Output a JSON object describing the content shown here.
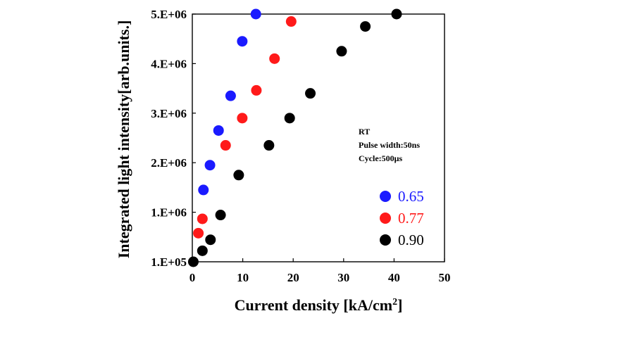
{
  "chart_data": {
    "type": "scatter",
    "title": "",
    "xlabel": "Current density [kA/cm",
    "xlabel_sup": "2",
    "xlabel_end": "]",
    "ylabel": "Integrated light intensity[arb.units.]",
    "xlim": [
      0,
      50
    ],
    "x_ticks": [
      0,
      10,
      20,
      30,
      40,
      50
    ],
    "x_tick_labels": [
      "0",
      "10",
      "20",
      "30",
      "40",
      "50"
    ],
    "y_ticks": [
      100000,
      1000000,
      2000000,
      3000000,
      4000000,
      5000000
    ],
    "y_tick_labels": [
      "1.E+05",
      "1.E+06",
      "2.E+06",
      "3.E+06",
      "4.E+06",
      "5.E+06"
    ],
    "y_scale": "tick positions evenly spaced",
    "grid": false,
    "legend_position": "right",
    "annotation_lines": [
      "RT",
      "Pulse width:50ns",
      "Cycle:500μs"
    ],
    "series": [
      {
        "name": "0.65",
        "color": "#1a1aff",
        "x": [
          2.2,
          3.5,
          5.2,
          7.6,
          9.9,
          12.6
        ],
        "y": [
          1450000,
          1950000,
          2650000,
          3350000,
          4450000,
          5450000
        ]
      },
      {
        "name": "0.77",
        "color": "#ff1a1a",
        "x": [
          1.2,
          2.0,
          6.6,
          9.9,
          12.7,
          16.3,
          19.6
        ],
        "y": [
          620000,
          880000,
          2350000,
          2900000,
          3460000,
          4100000,
          4850000
        ]
      },
      {
        "name": "0.90",
        "color": "#000000",
        "x": [
          0.2,
          2.0,
          3.6,
          5.6,
          9.2,
          15.2,
          19.3,
          23.4,
          29.6,
          34.3,
          40.5
        ],
        "y": [
          100000,
          300000,
          500000,
          950000,
          1750000,
          2350000,
          2900000,
          3400000,
          4250000,
          4750000,
          5500000
        ]
      }
    ]
  }
}
